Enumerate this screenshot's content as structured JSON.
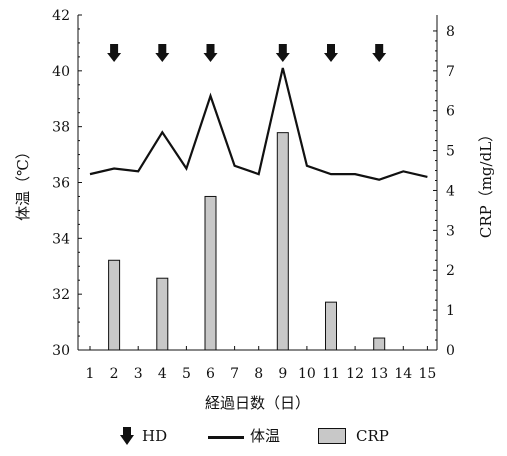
{
  "chart_data": {
    "type": "bar+line",
    "title": "",
    "xlabel": "経過日数（日）",
    "ylabel_left": "体温（℃）",
    "ylabel_right": "CRP（mg/dL）",
    "x": [
      1,
      2,
      3,
      4,
      5,
      6,
      7,
      8,
      9,
      10,
      11,
      12,
      13,
      14,
      15
    ],
    "x_ticklabels": [
      "1",
      "2",
      "3",
      "4",
      "5",
      "6",
      "7",
      "8",
      "9",
      "10",
      "11",
      "12",
      "13",
      "14",
      "15"
    ],
    "y_left_range": [
      30,
      42
    ],
    "y_left_ticks": [
      "30",
      "32",
      "34",
      "36",
      "38",
      "40",
      "42"
    ],
    "y_right_range": [
      0,
      8.4
    ],
    "y_right_ticks": [
      "0",
      "1",
      "2",
      "3",
      "4",
      "5",
      "6",
      "7",
      "8"
    ],
    "temperature": [
      36.3,
      36.5,
      36.4,
      37.8,
      36.5,
      39.1,
      36.6,
      36.3,
      40.1,
      36.6,
      36.3,
      36.3,
      36.1,
      36.4,
      36.2
    ],
    "crp": [
      {
        "day": 2,
        "value": 2.25
      },
      {
        "day": 4,
        "value": 1.8
      },
      {
        "day": 6,
        "value": 3.85
      },
      {
        "day": 9,
        "value": 5.45
      },
      {
        "day": 11,
        "value": 1.2
      },
      {
        "day": 13,
        "value": 0.3
      }
    ],
    "hd_days": [
      2,
      4,
      6,
      9,
      11,
      13
    ],
    "legend": {
      "hd": "HD",
      "temp": "体温",
      "crp": "CRP"
    },
    "colors": {
      "line": "#111111",
      "bar": "#c8c8c8",
      "bar_edge": "#111111",
      "arrow": "#111111"
    },
    "grid": false
  }
}
